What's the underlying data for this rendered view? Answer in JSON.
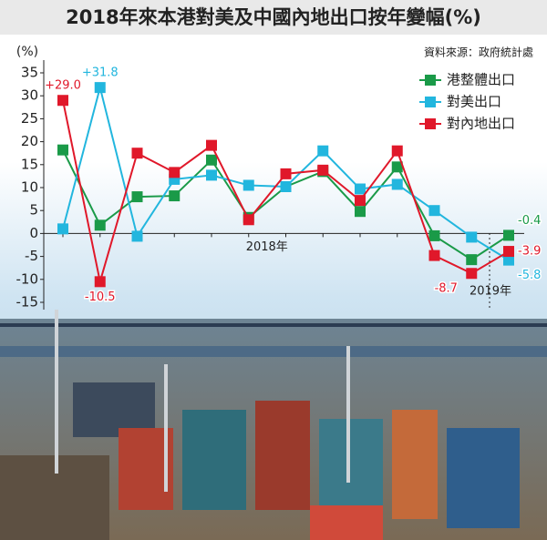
{
  "chart_data": {
    "type": "line",
    "title": "2018年來本港對美及中國內地出口按年變幅(%)",
    "source": "資料來源：政府統計處",
    "y_label": "(%)",
    "categories": [
      null,
      null,
      null,
      null,
      null,
      "2018年",
      null,
      null,
      null,
      null,
      null,
      null,
      "2019年"
    ],
    "series": [
      {
        "name": "港整體出口",
        "color": "#1a9a48",
        "values": [
          18.2,
          1.8,
          8,
          8.2,
          16,
          3.5,
          10.2,
          13.5,
          4.8,
          14.5,
          -0.5,
          -5.7,
          -0.4
        ],
        "value_labels": [
          null,
          null,
          null,
          null,
          null,
          null,
          null,
          null,
          null,
          null,
          null,
          null,
          "-0.4"
        ]
      },
      {
        "name": "對美出口",
        "color": "#22b6de",
        "values": [
          1,
          31.8,
          -0.6,
          11.8,
          12.7,
          10.5,
          10.2,
          18,
          9.7,
          10.7,
          5,
          -0.8,
          -5.8
        ],
        "value_labels": [
          null,
          "+31.8",
          null,
          null,
          null,
          null,
          null,
          null,
          null,
          null,
          null,
          null,
          "-5.8"
        ]
      },
      {
        "name": "對內地出口",
        "color": "#e0182a",
        "values": [
          29.0,
          -10.5,
          17.5,
          13.3,
          19.2,
          3,
          13,
          13.8,
          7.2,
          18,
          -4.8,
          -8.7,
          -3.9
        ],
        "value_labels": [
          "+29.0",
          "-10.5",
          null,
          null,
          null,
          null,
          null,
          null,
          null,
          null,
          null,
          "-8.7",
          "-3.9"
        ]
      }
    ],
    "ylim": [
      -15,
      35
    ],
    "yticks": [
      35,
      30,
      25,
      20,
      15,
      10,
      5,
      0,
      -5,
      -10,
      -15
    ],
    "legend": "top-right"
  }
}
